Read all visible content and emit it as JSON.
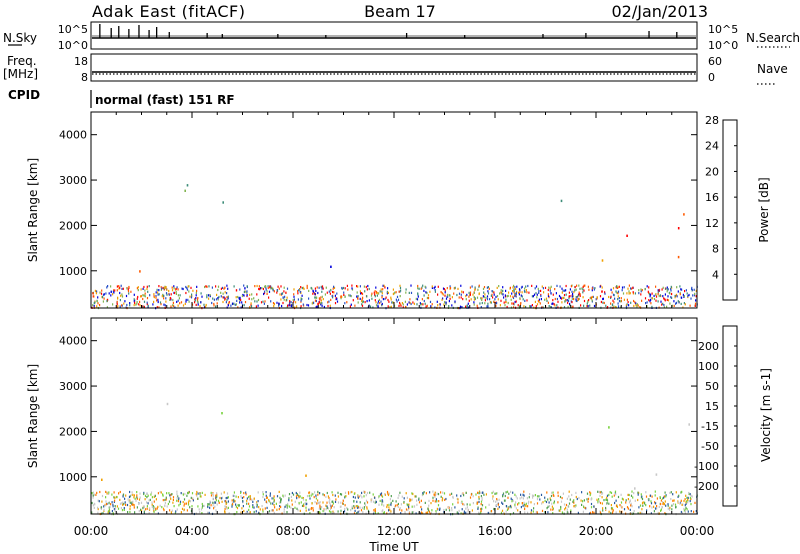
{
  "header": {
    "station": "Adak East (fitACF)",
    "beam": "Beam 17",
    "date": "02/Jan/2013"
  },
  "panels": {
    "nsky": {
      "label": "N.Sky",
      "right_label": "N.Search",
      "ticks_left": [
        "10^5",
        "10^0"
      ],
      "ticks_right": [
        "10^5",
        "10^0"
      ]
    },
    "freq": {
      "label_line1": "Freq.",
      "label_line2": "[MHz]",
      "right_label": "Nave",
      "ticks_left": [
        "18",
        "8"
      ],
      "ticks_right": [
        "60",
        "0"
      ]
    },
    "cpid": {
      "label": "CPID",
      "text": "normal (fast) 151 RF"
    }
  },
  "chart_data": [
    {
      "type": "heatmap",
      "name": "power",
      "ylabel": "Slant Range [km]",
      "y_ticks": [
        1000,
        2000,
        3000,
        4000
      ],
      "ylim": [
        180,
        4500
      ],
      "colorbar": {
        "label": "Power [dB]",
        "ticks": [
          "4",
          "8",
          "12",
          "16",
          "20",
          "24",
          "28"
        ],
        "colors": [
          "#0000dd",
          "#2850c8",
          "#3c8c78",
          "#82b450",
          "#f0a000",
          "#ff5a00",
          "#ff0000"
        ]
      },
      "x_ticks": [
        "00:00",
        "04:00",
        "08:00",
        "12:00",
        "16:00",
        "20:00",
        "00:00"
      ],
      "xlim_hours": [
        0,
        24
      ]
    },
    {
      "type": "heatmap",
      "name": "velocity",
      "ylabel": "Slant Range [km]",
      "y_ticks": [
        1000,
        2000,
        3000,
        4000
      ],
      "ylim": [
        180,
        4500
      ],
      "colorbar": {
        "label": "Velocity [m s-1]",
        "ticks": [
          "200",
          "100",
          "50",
          "15",
          "-15",
          "-50",
          "-100",
          "-200"
        ],
        "colors": [
          "#1e32b4",
          "#285aa0",
          "#50a050",
          "#78d23c",
          "#c8c8c8",
          "#f0a000",
          "#ff7800",
          "#ff2800",
          "#e60000"
        ]
      },
      "x_ticks": [
        "00:00",
        "04:00",
        "08:00",
        "12:00",
        "16:00",
        "20:00",
        "00:00"
      ],
      "xlim_hours": [
        0,
        24
      ]
    }
  ],
  "xlabel": "Time UT"
}
